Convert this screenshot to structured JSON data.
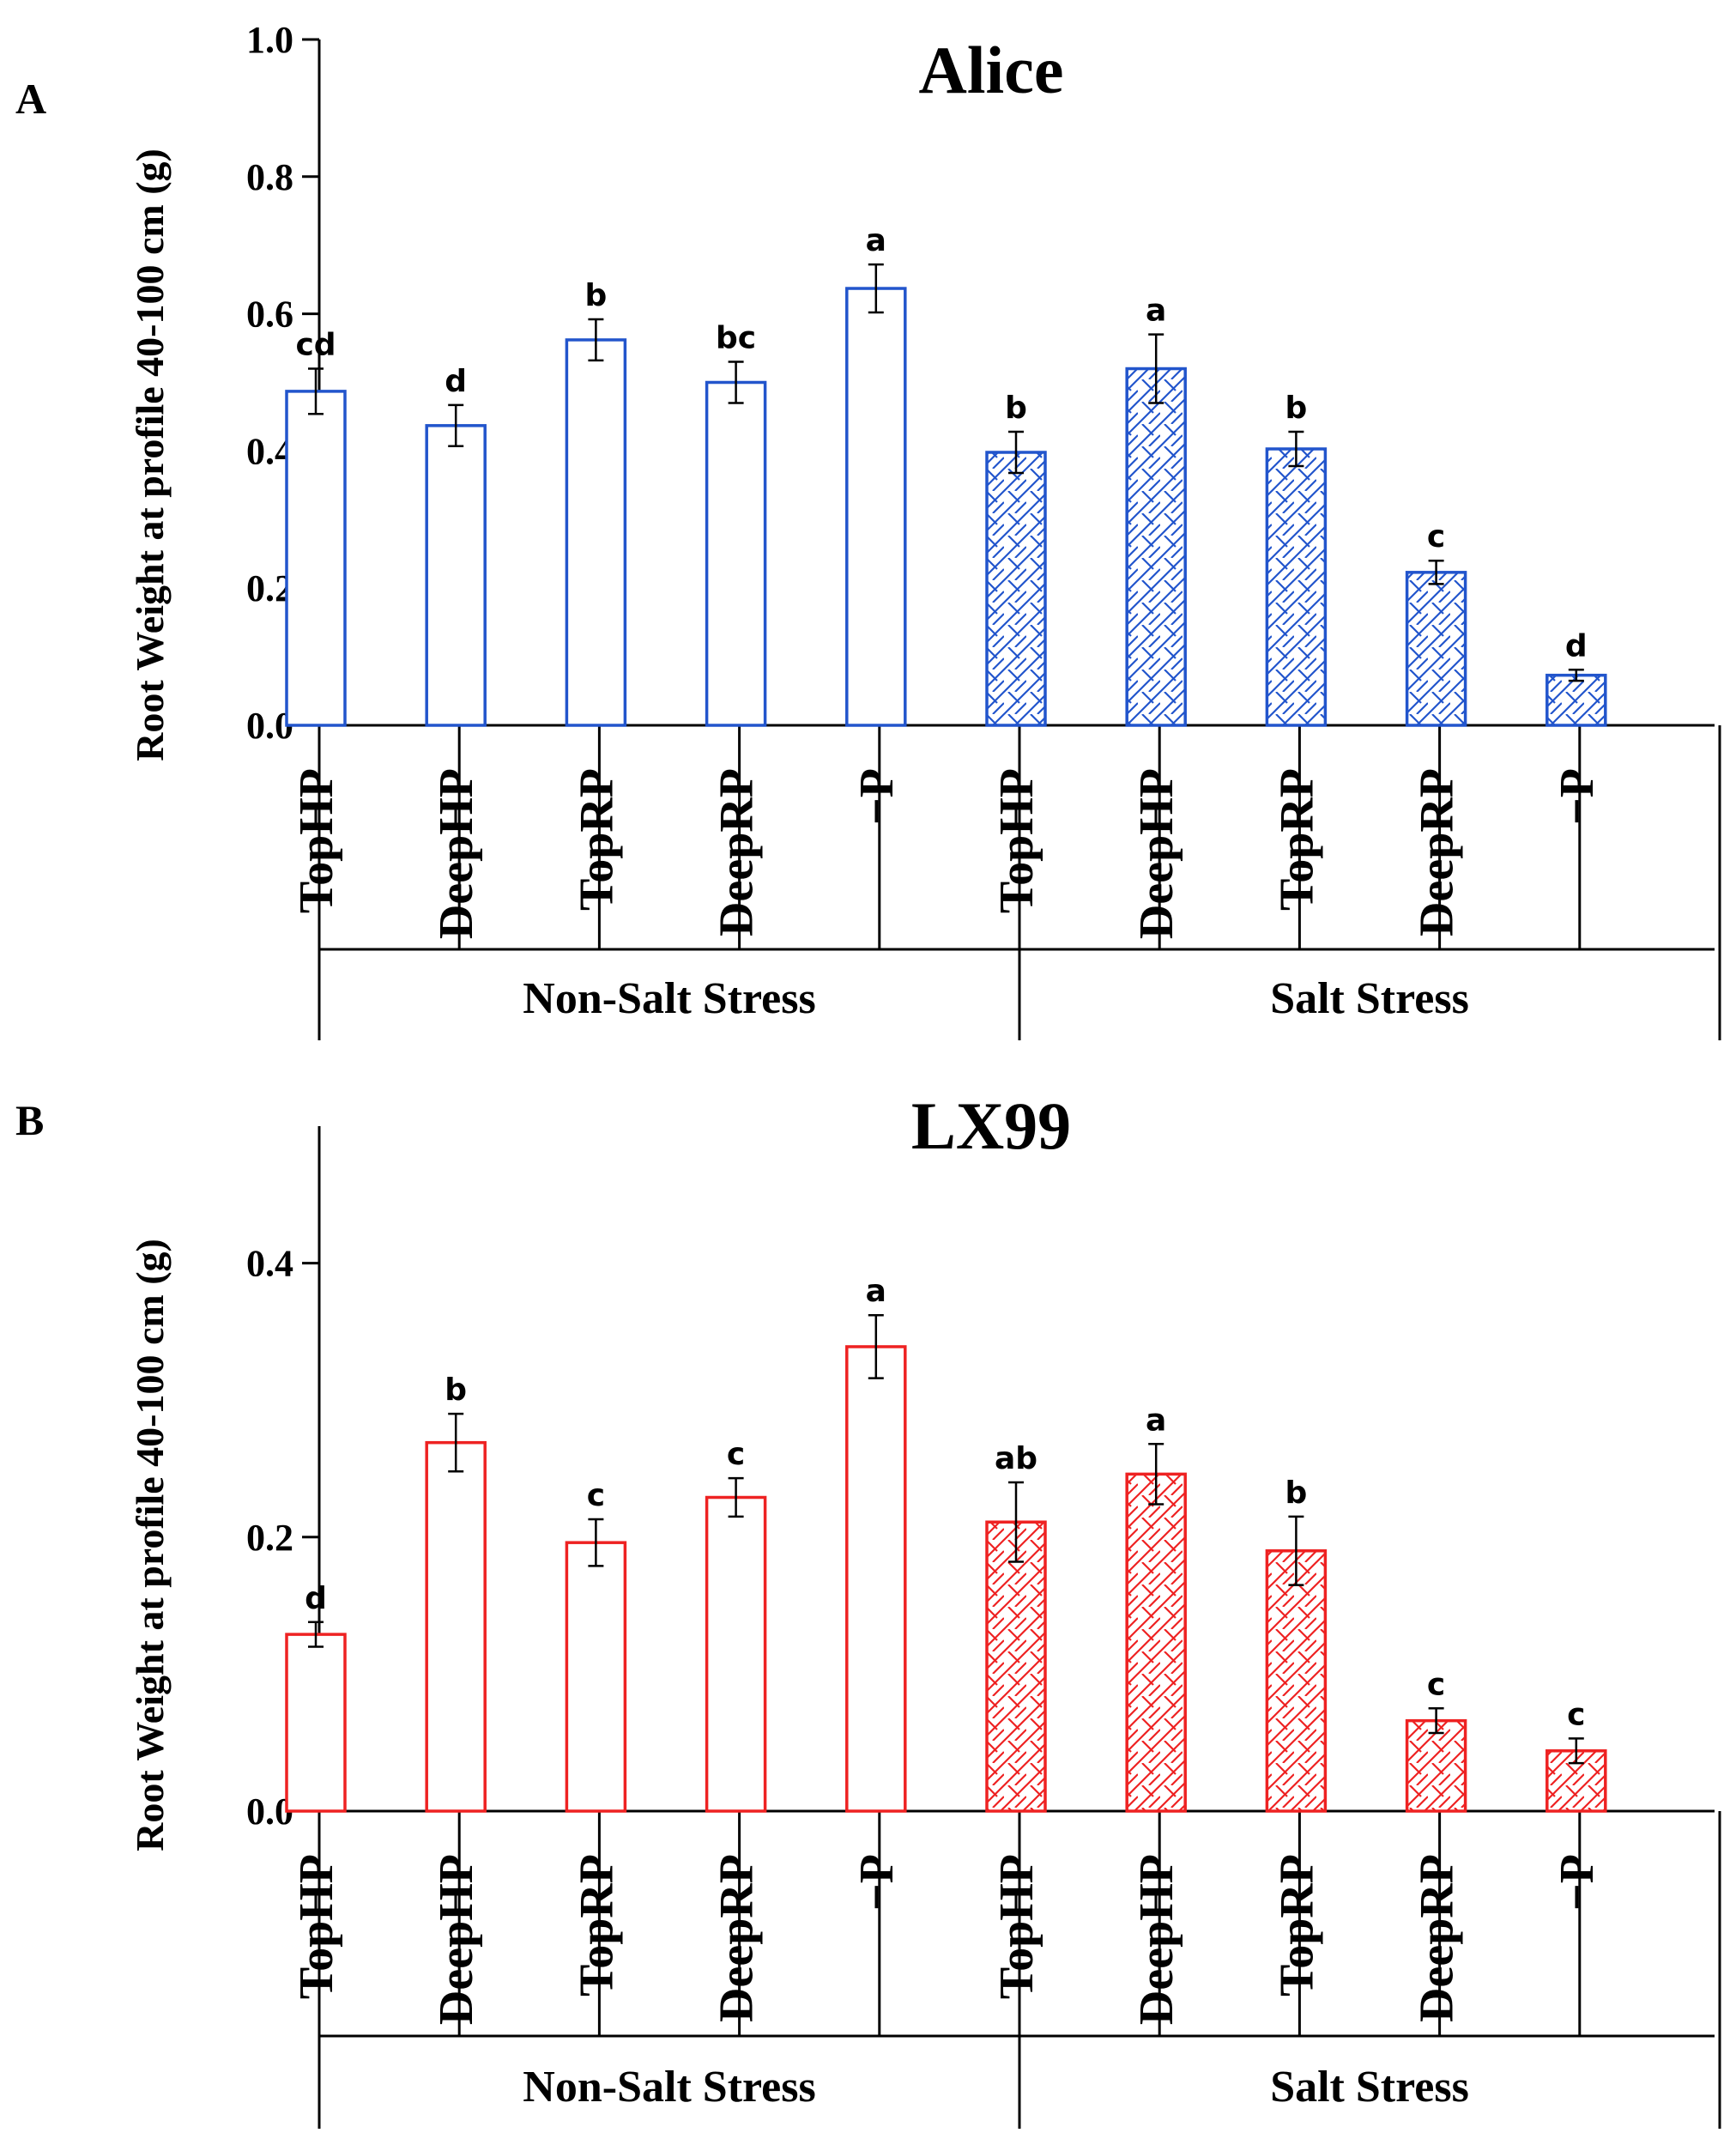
{
  "chart_data": [
    {
      "type": "bar",
      "panel_label": "A",
      "title": "Alice",
      "ylabel": "Root Weight at profile 40-100 cm (g)",
      "ylim": [
        0,
        1.0
      ],
      "yticks": [
        "0.0",
        "0.2",
        "0.4",
        "0.6",
        "0.8",
        "1.0"
      ],
      "color": "#2255CC",
      "groups": [
        {
          "name": "Non-Salt Stress",
          "pattern": "none",
          "categories": [
            "TopHP",
            "DeepHP",
            "TopRP",
            "DeepRP",
            "−P"
          ],
          "values": [
            0.487,
            0.437,
            0.562,
            0.5,
            0.637
          ],
          "errors": [
            0.033,
            0.03,
            0.03,
            0.03,
            0.035
          ],
          "letters": [
            "cd",
            "d",
            "b",
            "bc",
            "a"
          ]
        },
        {
          "name": "Salt Stress",
          "pattern": "hatch",
          "categories": [
            "TopHP",
            "DeepHP",
            "TopRP",
            "DeepRP",
            "−P"
          ],
          "values": [
            0.398,
            0.52,
            0.403,
            0.223,
            0.073
          ],
          "errors": [
            0.03,
            0.05,
            0.025,
            0.017,
            0.008
          ],
          "letters": [
            "b",
            "a",
            "b",
            "c",
            "d"
          ]
        }
      ]
    },
    {
      "type": "bar",
      "panel_label": "B",
      "title": "LX99",
      "ylabel": "Root Weight at profile 40-100 cm (g)",
      "ylim": [
        0,
        0.5
      ],
      "yticks": [
        "0.0",
        "0.2",
        "0.4"
      ],
      "ytick_values": [
        0,
        0.2,
        0.4
      ],
      "color": "#EE2222",
      "groups": [
        {
          "name": "Non-Salt Stress",
          "pattern": "none",
          "categories": [
            "TopHP",
            "DeepHP",
            "TopRP",
            "DeepRP",
            "−P"
          ],
          "values": [
            0.129,
            0.269,
            0.196,
            0.229,
            0.339
          ],
          "errors": [
            0.009,
            0.021,
            0.017,
            0.014,
            0.023
          ],
          "letters": [
            "d",
            "b",
            "c",
            "c",
            "a"
          ]
        },
        {
          "name": "Salt Stress",
          "pattern": "hatch",
          "categories": [
            "TopHP",
            "DeepHP",
            "TopRP",
            "DeepRP",
            "−P"
          ],
          "values": [
            0.211,
            0.246,
            0.19,
            0.066,
            0.044
          ],
          "errors": [
            0.029,
            0.022,
            0.025,
            0.009,
            0.009
          ],
          "letters": [
            "ab",
            "a",
            "b",
            "c",
            "c"
          ]
        }
      ]
    }
  ]
}
